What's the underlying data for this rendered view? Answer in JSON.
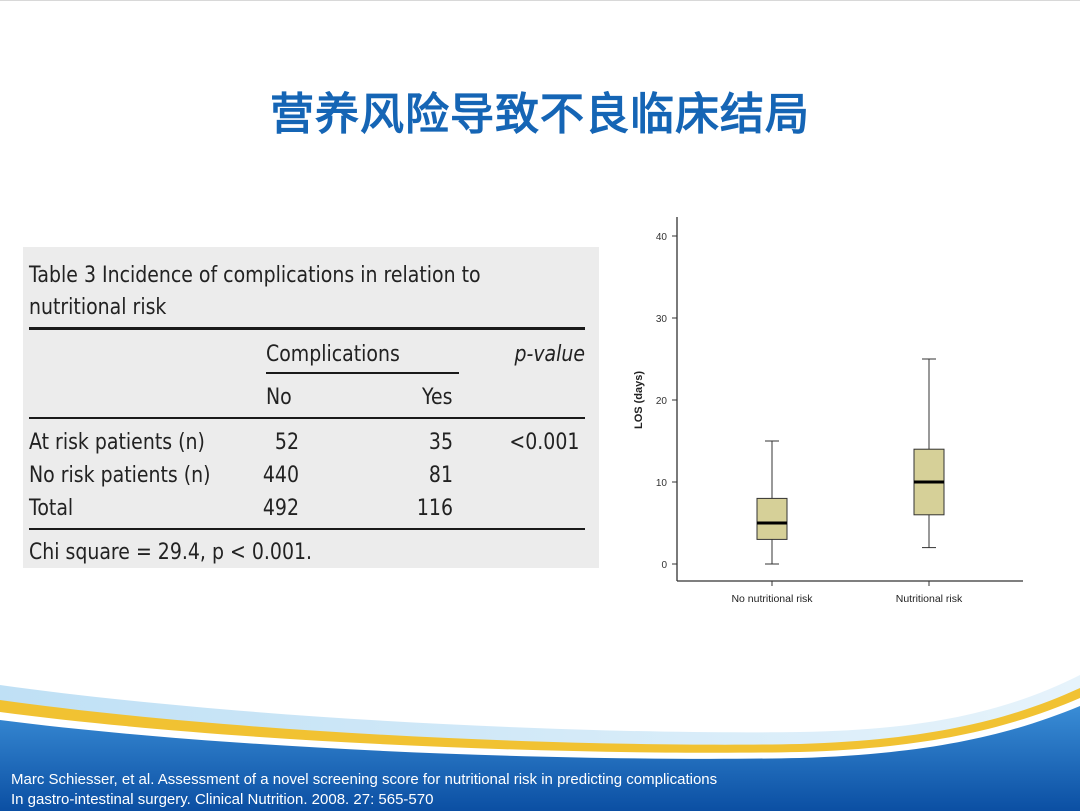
{
  "slide": {
    "title": "营养风险导致不良临床结局"
  },
  "table": {
    "caption_line1": "Table 3  Incidence of complications in relation to",
    "caption_line2": "nutritional risk",
    "group_header": "Complications",
    "pvalue_header": "p-value",
    "col_no": "No",
    "col_yes": "Yes",
    "rows": [
      {
        "label": "At risk patients (n)",
        "no": "52",
        "yes": "35",
        "p": "<0.001"
      },
      {
        "label": "No risk patients (n)",
        "no": "440",
        "yes": "81",
        "p": ""
      },
      {
        "label": "Total",
        "no": "492",
        "yes": "116",
        "p": ""
      }
    ],
    "footnote": "Chi square = 29.4, p < 0.001."
  },
  "chart_data": {
    "type": "boxplot",
    "ylabel": "LOS (days)",
    "xlabel": "",
    "ylim": [
      0,
      40
    ],
    "yticks": [
      "0",
      "10",
      "20",
      "30",
      "40"
    ],
    "categories": [
      "No nutritional risk",
      "Nutritional risk"
    ],
    "series": [
      {
        "category": "No nutritional risk",
        "min": 0,
        "q1": 3,
        "median": 5,
        "q3": 8,
        "max": 15
      },
      {
        "category": "Nutritional risk",
        "min": 2,
        "q1": 6,
        "median": 10,
        "q3": 14,
        "max": 25
      }
    ],
    "box_color": "#d6d098"
  },
  "footer": {
    "citation_line1": "Marc Schiesser, et al. Assessment  of a novel screening score for nutritional risk in predicting  complications",
    "citation_line2": "In gastro-intestinal surgery. Clinical Nutrition. 2008. 27: 565-570"
  }
}
